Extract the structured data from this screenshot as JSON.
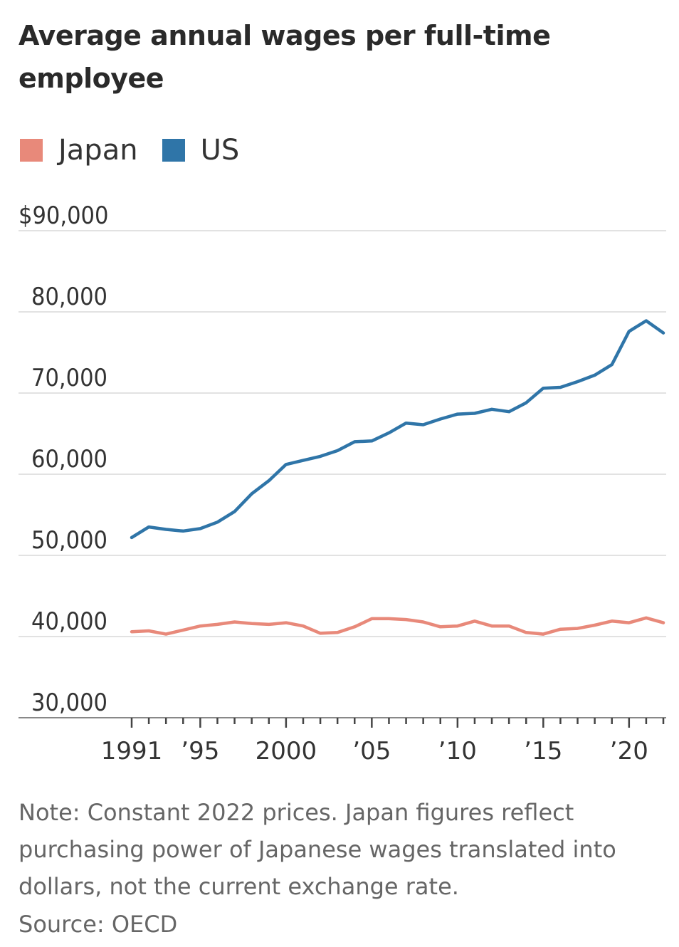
{
  "title": "Average annual wages per full-time employee",
  "legend": [
    {
      "label": "Japan",
      "color": "#e8897a"
    },
    {
      "label": "US",
      "color": "#2f75a8"
    }
  ],
  "note": "Note: Constant 2022 prices. Japan figures reflect purchasing power of Japanese wages translated into dollars, not the current exchange rate.",
  "source": "Source: OECD",
  "chart_data": {
    "type": "line",
    "title": "Average annual wages per full-time employee",
    "xlabel": "",
    "ylabel": "",
    "xlim": [
      1991,
      2022
    ],
    "ylim": [
      30000,
      90000
    ],
    "grid": true,
    "legend_position": "top-left",
    "y_ticks": [
      30000,
      40000,
      50000,
      60000,
      70000,
      80000,
      90000
    ],
    "y_tick_labels": [
      "30,000",
      "40,000",
      "50,000",
      "60,000",
      "70,000",
      "80,000",
      "$90,000"
    ],
    "x_ticks": [
      1991,
      1995,
      2000,
      2005,
      2010,
      2015,
      2020
    ],
    "x_tick_labels": [
      "1991",
      "’95",
      "2000",
      "’05",
      "’10",
      "’15",
      "’20"
    ],
    "x": [
      1991,
      1992,
      1993,
      1994,
      1995,
      1996,
      1997,
      1998,
      1999,
      2000,
      2001,
      2002,
      2003,
      2004,
      2005,
      2006,
      2007,
      2008,
      2009,
      2010,
      2011,
      2012,
      2013,
      2014,
      2015,
      2016,
      2017,
      2018,
      2019,
      2020,
      2021,
      2022
    ],
    "series": [
      {
        "name": "US",
        "color": "#2f75a8",
        "values": [
          52200,
          53500,
          53200,
          53000,
          53300,
          54100,
          55400,
          57600,
          59200,
          61200,
          61700,
          62200,
          62900,
          64000,
          64100,
          65100,
          66300,
          66100,
          66800,
          67400,
          67500,
          68000,
          67700,
          68800,
          70600,
          70700,
          71400,
          72200,
          73500,
          77600,
          78900,
          77400
        ]
      },
      {
        "name": "Japan",
        "color": "#e8897a",
        "values": [
          40600,
          40700,
          40300,
          40800,
          41300,
          41500,
          41800,
          41600,
          41500,
          41700,
          41300,
          40400,
          40500,
          41200,
          42200,
          42200,
          42100,
          41800,
          41200,
          41300,
          41900,
          41300,
          41300,
          40500,
          40300,
          40900,
          41000,
          41400,
          41900,
          41700,
          42300,
          41700
        ]
      }
    ]
  }
}
